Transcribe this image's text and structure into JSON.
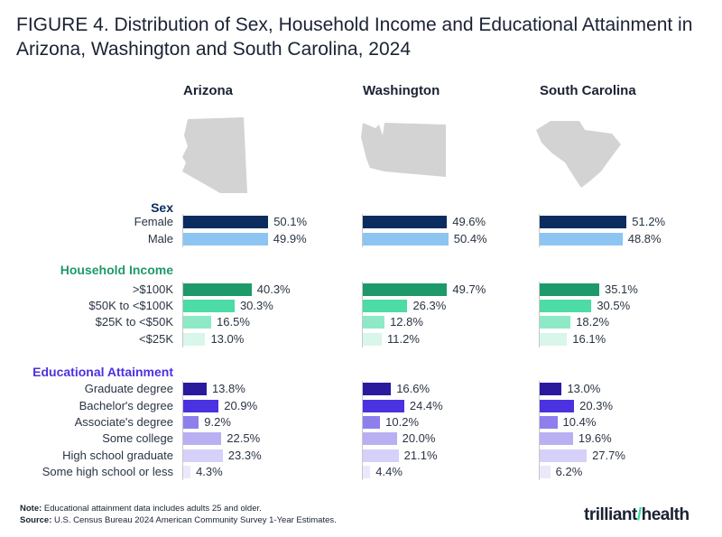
{
  "title": "FIGURE 4. Distribution of Sex, Household Income and Educational Attainment in Arizona, Washington and South Carolina, 2024",
  "chart_data": {
    "type": "bar",
    "orientation": "horizontal",
    "unit": "%",
    "states": [
      "Arizona",
      "Washington",
      "South Carolina"
    ],
    "groups": [
      {
        "name": "Sex",
        "color": "#0b2c5e",
        "categories": [
          "Female",
          "Male"
        ],
        "colors": [
          "#0b2c5e",
          "#8cc4f2"
        ],
        "values": {
          "Arizona": [
            50.1,
            49.9
          ],
          "Washington": [
            49.6,
            50.4
          ],
          "South Carolina": [
            51.2,
            48.8
          ]
        }
      },
      {
        "name": "Household Income",
        "color": "#1e9a6a",
        "categories": [
          ">$100K",
          "$50K to <$100K",
          "$25K to <$50K",
          "<$25K"
        ],
        "colors": [
          "#1e9a6a",
          "#4ddba6",
          "#8ee9c6",
          "#d9f6ea"
        ],
        "values": {
          "Arizona": [
            40.3,
            30.3,
            16.5,
            13.0
          ],
          "Washington": [
            49.7,
            26.3,
            12.8,
            11.2
          ],
          "South Carolina": [
            35.1,
            30.5,
            18.2,
            16.1
          ]
        }
      },
      {
        "name": "Educational Attainment",
        "color": "#4b32e0",
        "categories": [
          "Graduate degree",
          "Bachelor's degree",
          "Associate's degree",
          "Some college",
          "High school graduate",
          "Some high school or less"
        ],
        "colors": [
          "#2a1a9e",
          "#4b32e0",
          "#8d80ec",
          "#b8b0f2",
          "#d6d1f8",
          "#ebe8fb"
        ],
        "values": {
          "Arizona": [
            13.8,
            20.9,
            9.2,
            22.5,
            23.3,
            4.3
          ],
          "Washington": [
            16.6,
            24.4,
            10.2,
            20.0,
            21.1,
            4.4
          ],
          "South Carolina": [
            13.0,
            20.3,
            10.4,
            19.6,
            27.7,
            6.2
          ]
        }
      }
    ]
  },
  "footer": {
    "note_label": "Note:",
    "note": " Educational attainment data includes adults 25 and older.",
    "source_label": "Source:",
    "source": " U.S. Census Bureau 2024 American Community Survey 1-Year Estimates."
  },
  "logo": {
    "text1": "trilliant",
    "text2": "health"
  },
  "map_color": "#d3d3d3"
}
